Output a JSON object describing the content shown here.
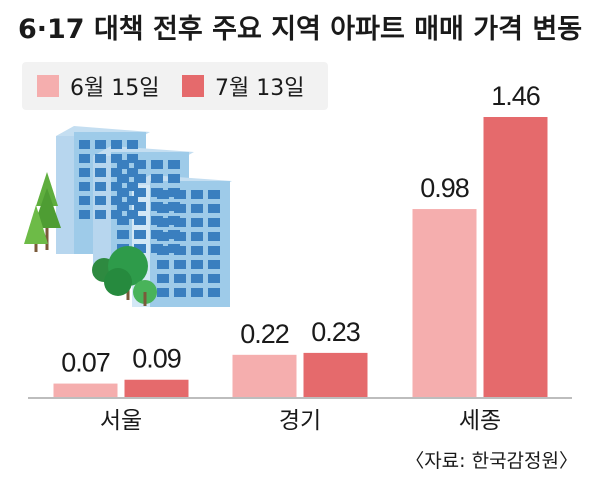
{
  "chart_data": {
    "type": "bar",
    "title": "6·17 대책 전후 주요 지역 아파트 매매 가격 변동",
    "categories": [
      "서울",
      "경기",
      "세종"
    ],
    "series": [
      {
        "name": "6월 15일",
        "values": [
          0.07,
          0.22,
          0.98
        ]
      },
      {
        "name": "7월 13일",
        "values": [
          0.09,
          0.23,
          1.46
        ]
      }
    ],
    "value_labels": [
      [
        "0.07",
        "0.22",
        "0.98"
      ],
      [
        "0.09",
        "0.23",
        "1.46"
      ]
    ],
    "ylim": [
      0,
      1.46
    ],
    "legend_position": "top-left",
    "grid": false,
    "source": "〈자료: 한국감정원〉"
  },
  "colors": {
    "series_1": "#f5aeae",
    "series_2": "#e56a6c",
    "legend_bg": "#f2f2f2",
    "baseline": "#bdbdbd",
    "building_front": "#9ecbe9",
    "building_side": "#d3e8f6",
    "window": "#3a7fbf",
    "tree": "#2e9b4a",
    "pine": "#5fae3e"
  },
  "icons": [
    "apartment-building-illustration",
    "tree-illustration"
  ]
}
